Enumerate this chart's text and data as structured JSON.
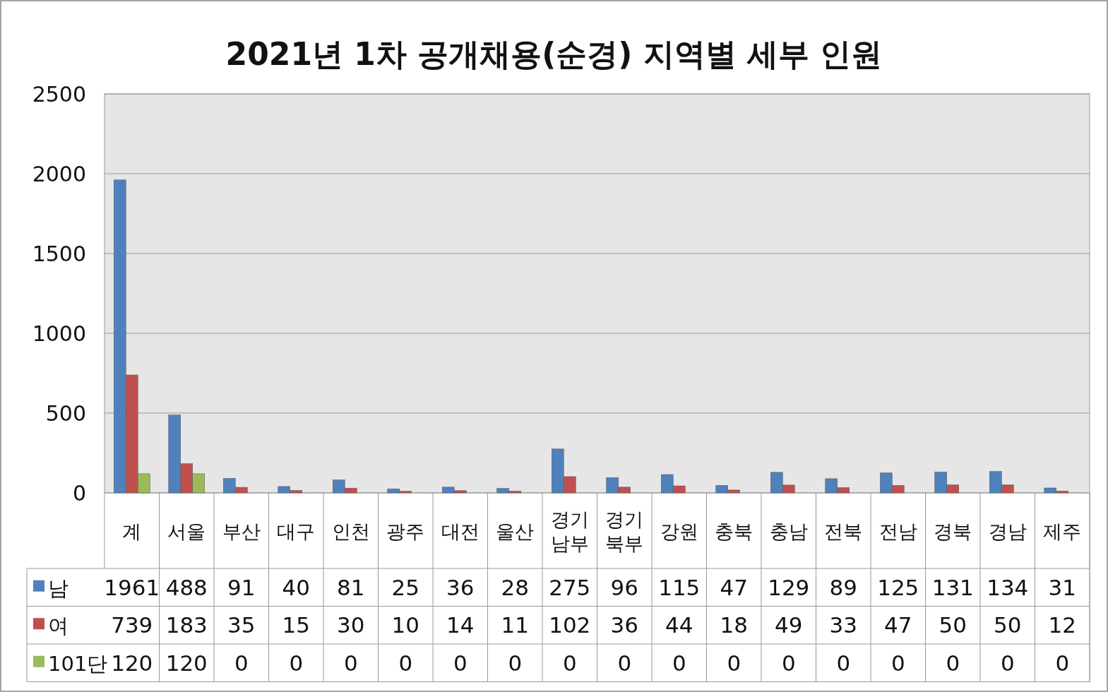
{
  "chart_data": {
    "type": "bar",
    "title": "2021년 1차 공개채용(순경) 지역별 세부 인원",
    "categories": [
      "계",
      "서울",
      "부산",
      "대구",
      "인천",
      "광주",
      "대전",
      "울산",
      "경기 남부",
      "경기 북부",
      "강원",
      "충북",
      "충남",
      "전북",
      "전남",
      "경북",
      "경남",
      "제주"
    ],
    "series": [
      {
        "name": "남",
        "color": "#4f81bd",
        "values": [
          1961,
          488,
          91,
          40,
          81,
          25,
          36,
          28,
          275,
          96,
          115,
          47,
          129,
          89,
          125,
          131,
          134,
          31
        ]
      },
      {
        "name": "여",
        "color": "#c0504d",
        "values": [
          739,
          183,
          35,
          15,
          30,
          10,
          14,
          11,
          102,
          36,
          44,
          18,
          49,
          33,
          47,
          50,
          50,
          12
        ]
      },
      {
        "name": "101단",
        "color": "#9bbb59",
        "values": [
          120,
          120,
          0,
          0,
          0,
          0,
          0,
          0,
          0,
          0,
          0,
          0,
          0,
          0,
          0,
          0,
          0,
          0
        ]
      }
    ],
    "ylim": [
      0,
      2500
    ],
    "yticks": [
      0,
      500,
      1000,
      1500,
      2000,
      2500
    ],
    "grid": "y",
    "data_labels": true,
    "legend": "bottom left"
  }
}
